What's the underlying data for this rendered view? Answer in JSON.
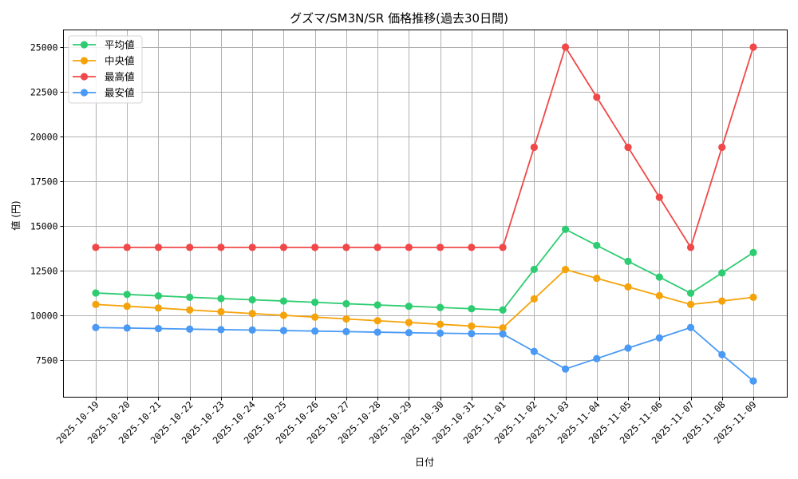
{
  "chart_data": {
    "type": "line",
    "title": "グズマ/SM3N/SR 価格推移(過去30日間)",
    "xlabel": "日付",
    "ylabel": "値 (円)",
    "ylim": [
      6000,
      26000
    ],
    "yticks": [
      7500,
      10000,
      12500,
      15000,
      17500,
      20000,
      22500,
      25000
    ],
    "grid": true,
    "legend_position": "upper left",
    "categories": [
      "2025-10-19",
      "2025-10-20",
      "2025-10-21",
      "2025-10-22",
      "2025-10-23",
      "2025-10-24",
      "2025-10-25",
      "2025-10-26",
      "2025-10-27",
      "2025-10-28",
      "2025-10-29",
      "2025-10-30",
      "2025-10-31",
      "2025-11-01",
      "2025-11-02",
      "2025-11-03",
      "2025-11-04",
      "2025-11-05",
      "2025-11-06",
      "2025-11-07",
      "2025-11-08",
      "2025-11-09"
    ],
    "series": [
      {
        "name": "平均値",
        "color": "#2ecc71",
        "values": [
          11250,
          11170,
          11090,
          11010,
          10940,
          10870,
          10800,
          10730,
          10650,
          10580,
          10510,
          10440,
          10370,
          10300,
          12570,
          14810,
          13910,
          13020,
          12140,
          11240,
          12370,
          13510
        ]
      },
      {
        "name": "中央値",
        "color": "#f5a30a",
        "values": [
          10610,
          10510,
          10410,
          10300,
          10200,
          10100,
          10000,
          9900,
          9800,
          9700,
          9600,
          9500,
          9400,
          9300,
          10920,
          12560,
          12070,
          11590,
          11100,
          10610,
          10800,
          11010
        ]
      },
      {
        "name": "最高値",
        "color": "#f04848",
        "values": [
          13800,
          13800,
          13800,
          13800,
          13800,
          13800,
          13800,
          13800,
          13800,
          13800,
          13800,
          13800,
          13800,
          13800,
          19400,
          25000,
          22200,
          19400,
          16600,
          13800,
          19400,
          25000
        ]
      },
      {
        "name": "最安値",
        "color": "#4a9af5",
        "values": [
          9320,
          9290,
          9260,
          9230,
          9200,
          9180,
          9150,
          9120,
          9090,
          9060,
          9030,
          9000,
          8980,
          8960,
          7980,
          7000,
          7580,
          8170,
          8740,
          9320,
          7800,
          6330
        ]
      }
    ]
  }
}
